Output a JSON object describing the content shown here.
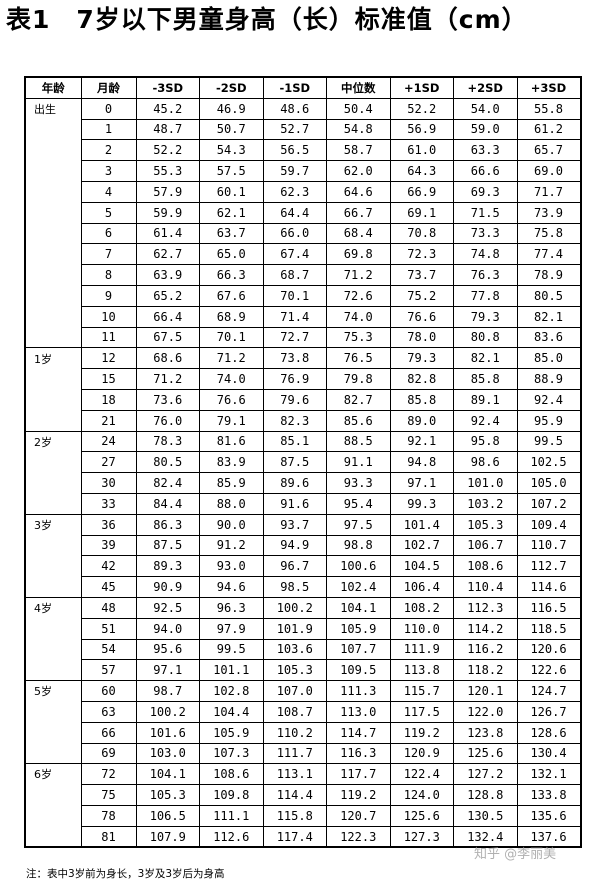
{
  "title": "表1　7岁以下男童身高（长）标准值（cm）",
  "headers": [
    "年龄",
    "月龄",
    "-3SD",
    "-2SD",
    "-1SD",
    "中位数",
    "+1SD",
    "+2SD",
    "+3SD"
  ],
  "rows": [
    {
      "age": "出生",
      "month": "0",
      "v": [
        "45.2",
        "46.9",
        "48.6",
        "50.4",
        "52.2",
        "54.0",
        "55.8"
      ]
    },
    {
      "age": "",
      "month": "1",
      "v": [
        "48.7",
        "50.7",
        "52.7",
        "54.8",
        "56.9",
        "59.0",
        "61.2"
      ]
    },
    {
      "age": "",
      "month": "2",
      "v": [
        "52.2",
        "54.3",
        "56.5",
        "58.7",
        "61.0",
        "63.3",
        "65.7"
      ]
    },
    {
      "age": "",
      "month": "3",
      "v": [
        "55.3",
        "57.5",
        "59.7",
        "62.0",
        "64.3",
        "66.6",
        "69.0"
      ]
    },
    {
      "age": "",
      "month": "4",
      "v": [
        "57.9",
        "60.1",
        "62.3",
        "64.6",
        "66.9",
        "69.3",
        "71.7"
      ]
    },
    {
      "age": "",
      "month": "5",
      "v": [
        "59.9",
        "62.1",
        "64.4",
        "66.7",
        "69.1",
        "71.5",
        "73.9"
      ]
    },
    {
      "age": "",
      "month": "6",
      "v": [
        "61.4",
        "63.7",
        "66.0",
        "68.4",
        "70.8",
        "73.3",
        "75.8"
      ]
    },
    {
      "age": "",
      "month": "7",
      "v": [
        "62.7",
        "65.0",
        "67.4",
        "69.8",
        "72.3",
        "74.8",
        "77.4"
      ]
    },
    {
      "age": "",
      "month": "8",
      "v": [
        "63.9",
        "66.3",
        "68.7",
        "71.2",
        "73.7",
        "76.3",
        "78.9"
      ]
    },
    {
      "age": "",
      "month": "9",
      "v": [
        "65.2",
        "67.6",
        "70.1",
        "72.6",
        "75.2",
        "77.8",
        "80.5"
      ]
    },
    {
      "age": "",
      "month": "10",
      "v": [
        "66.4",
        "68.9",
        "71.4",
        "74.0",
        "76.6",
        "79.3",
        "82.1"
      ]
    },
    {
      "age": "",
      "month": "11",
      "v": [
        "67.5",
        "70.1",
        "72.7",
        "75.3",
        "78.0",
        "80.8",
        "83.6"
      ]
    },
    {
      "age": "1岁",
      "month": "12",
      "v": [
        "68.6",
        "71.2",
        "73.8",
        "76.5",
        "79.3",
        "82.1",
        "85.0"
      ]
    },
    {
      "age": "",
      "month": "15",
      "v": [
        "71.2",
        "74.0",
        "76.9",
        "79.8",
        "82.8",
        "85.8",
        "88.9"
      ]
    },
    {
      "age": "",
      "month": "18",
      "v": [
        "73.6",
        "76.6",
        "79.6",
        "82.7",
        "85.8",
        "89.1",
        "92.4"
      ]
    },
    {
      "age": "",
      "month": "21",
      "v": [
        "76.0",
        "79.1",
        "82.3",
        "85.6",
        "89.0",
        "92.4",
        "95.9"
      ]
    },
    {
      "age": "2岁",
      "month": "24",
      "v": [
        "78.3",
        "81.6",
        "85.1",
        "88.5",
        "92.1",
        "95.8",
        "99.5"
      ]
    },
    {
      "age": "",
      "month": "27",
      "v": [
        "80.5",
        "83.9",
        "87.5",
        "91.1",
        "94.8",
        "98.6",
        "102.5"
      ]
    },
    {
      "age": "",
      "month": "30",
      "v": [
        "82.4",
        "85.9",
        "89.6",
        "93.3",
        "97.1",
        "101.0",
        "105.0"
      ]
    },
    {
      "age": "",
      "month": "33",
      "v": [
        "84.4",
        "88.0",
        "91.6",
        "95.4",
        "99.3",
        "103.2",
        "107.2"
      ]
    },
    {
      "age": "3岁",
      "month": "36",
      "v": [
        "86.3",
        "90.0",
        "93.7",
        "97.5",
        "101.4",
        "105.3",
        "109.4"
      ]
    },
    {
      "age": "",
      "month": "39",
      "v": [
        "87.5",
        "91.2",
        "94.9",
        "98.8",
        "102.7",
        "106.7",
        "110.7"
      ]
    },
    {
      "age": "",
      "month": "42",
      "v": [
        "89.3",
        "93.0",
        "96.7",
        "100.6",
        "104.5",
        "108.6",
        "112.7"
      ]
    },
    {
      "age": "",
      "month": "45",
      "v": [
        "90.9",
        "94.6",
        "98.5",
        "102.4",
        "106.4",
        "110.4",
        "114.6"
      ]
    },
    {
      "age": "4岁",
      "month": "48",
      "v": [
        "92.5",
        "96.3",
        "100.2",
        "104.1",
        "108.2",
        "112.3",
        "116.5"
      ]
    },
    {
      "age": "",
      "month": "51",
      "v": [
        "94.0",
        "97.9",
        "101.9",
        "105.9",
        "110.0",
        "114.2",
        "118.5"
      ]
    },
    {
      "age": "",
      "month": "54",
      "v": [
        "95.6",
        "99.5",
        "103.6",
        "107.7",
        "111.9",
        "116.2",
        "120.6"
      ]
    },
    {
      "age": "",
      "month": "57",
      "v": [
        "97.1",
        "101.1",
        "105.3",
        "109.5",
        "113.8",
        "118.2",
        "122.6"
      ]
    },
    {
      "age": "5岁",
      "month": "60",
      "v": [
        "98.7",
        "102.8",
        "107.0",
        "111.3",
        "115.7",
        "120.1",
        "124.7"
      ]
    },
    {
      "age": "",
      "month": "63",
      "v": [
        "100.2",
        "104.4",
        "108.7",
        "113.0",
        "117.5",
        "122.0",
        "126.7"
      ]
    },
    {
      "age": "",
      "month": "66",
      "v": [
        "101.6",
        "105.9",
        "110.2",
        "114.7",
        "119.2",
        "123.8",
        "128.6"
      ]
    },
    {
      "age": "",
      "month": "69",
      "v": [
        "103.0",
        "107.3",
        "111.7",
        "116.3",
        "120.9",
        "125.6",
        "130.4"
      ]
    },
    {
      "age": "6岁",
      "month": "72",
      "v": [
        "104.1",
        "108.6",
        "113.1",
        "117.7",
        "122.4",
        "127.2",
        "132.1"
      ]
    },
    {
      "age": "",
      "month": "75",
      "v": [
        "105.3",
        "109.8",
        "114.4",
        "119.2",
        "124.0",
        "128.8",
        "133.8"
      ]
    },
    {
      "age": "",
      "month": "78",
      "v": [
        "106.5",
        "111.1",
        "115.8",
        "120.7",
        "125.6",
        "130.5",
        "135.6"
      ]
    },
    {
      "age": "",
      "month": "81",
      "v": [
        "107.9",
        "112.6",
        "117.4",
        "122.3",
        "127.3",
        "132.4",
        "137.6"
      ]
    }
  ],
  "note": "注：表中3岁前为身长，3岁及3岁后为身高",
  "watermark": "知乎 @李丽美"
}
